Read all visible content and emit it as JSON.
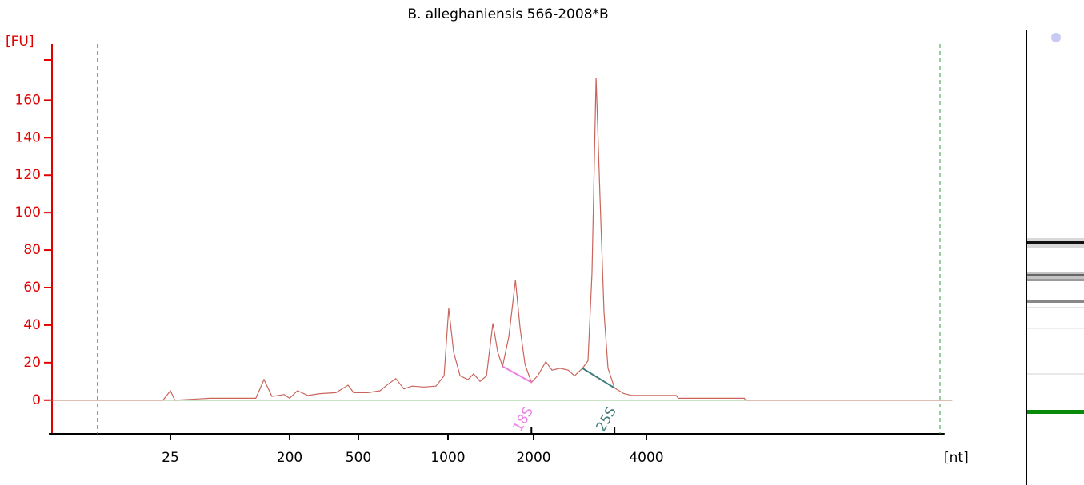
{
  "chart_data": {
    "type": "line",
    "title": "B. alleghaniensis 566-2008*B",
    "y_label": "[FU]",
    "x_label": "[nt]",
    "x": [
      3,
      22,
      25,
      27,
      50,
      111,
      128,
      147,
      182,
      200,
      222,
      255,
      300,
      371,
      436,
      469,
      538,
      591,
      629,
      668,
      711,
      757,
      830,
      911,
      970,
      1006,
      1047,
      1103,
      1176,
      1230,
      1297,
      1366,
      1438,
      1496,
      1556,
      1637,
      1726,
      1794,
      1866,
      1965,
      2051,
      2155,
      2241,
      2353,
      2473,
      2572,
      2701,
      2794,
      2864,
      2936,
      3009,
      3083,
      3159,
      3288,
      3486,
      3661,
      4801,
      4870,
      7300,
      7360,
      26200
    ],
    "series": [
      {
        "color": "#c9655c",
        "values": [
          0,
          0,
          5,
          0,
          1,
          1,
          11,
          2,
          3,
          1,
          5,
          2.5,
          3.5,
          4,
          8,
          4,
          4,
          5,
          8.5,
          11.5,
          6,
          7.5,
          7,
          7.5,
          13,
          49,
          25.5,
          13,
          11,
          14,
          10,
          13,
          41,
          25.5,
          18,
          34,
          64,
          38,
          19,
          9.5,
          13,
          20.5,
          16,
          17,
          16,
          13,
          17,
          21,
          68,
          172,
          107,
          47,
          17,
          6.5,
          3.5,
          2.5,
          2.5,
          1,
          1,
          0,
          0
        ]
      }
    ],
    "xlim": [
      3,
      25000
    ],
    "xticks": [
      25,
      200,
      500,
      1000,
      2000,
      4000
    ],
    "ylim": [
      -18,
      190
    ],
    "yticks": [
      0,
      20,
      40,
      60,
      80,
      100,
      120,
      140,
      160
    ],
    "baseline_color": "#8fc98f",
    "axis_color": "#e00000",
    "markers": [
      7,
      24300
    ],
    "annotations": [
      {
        "text": "18S",
        "x": [
          1556,
          1965
        ],
        "color": "#ee7ee8"
      },
      {
        "text": "25S",
        "x": [
          2701,
          3288
        ],
        "color": "#3f7c7c"
      }
    ]
  }
}
